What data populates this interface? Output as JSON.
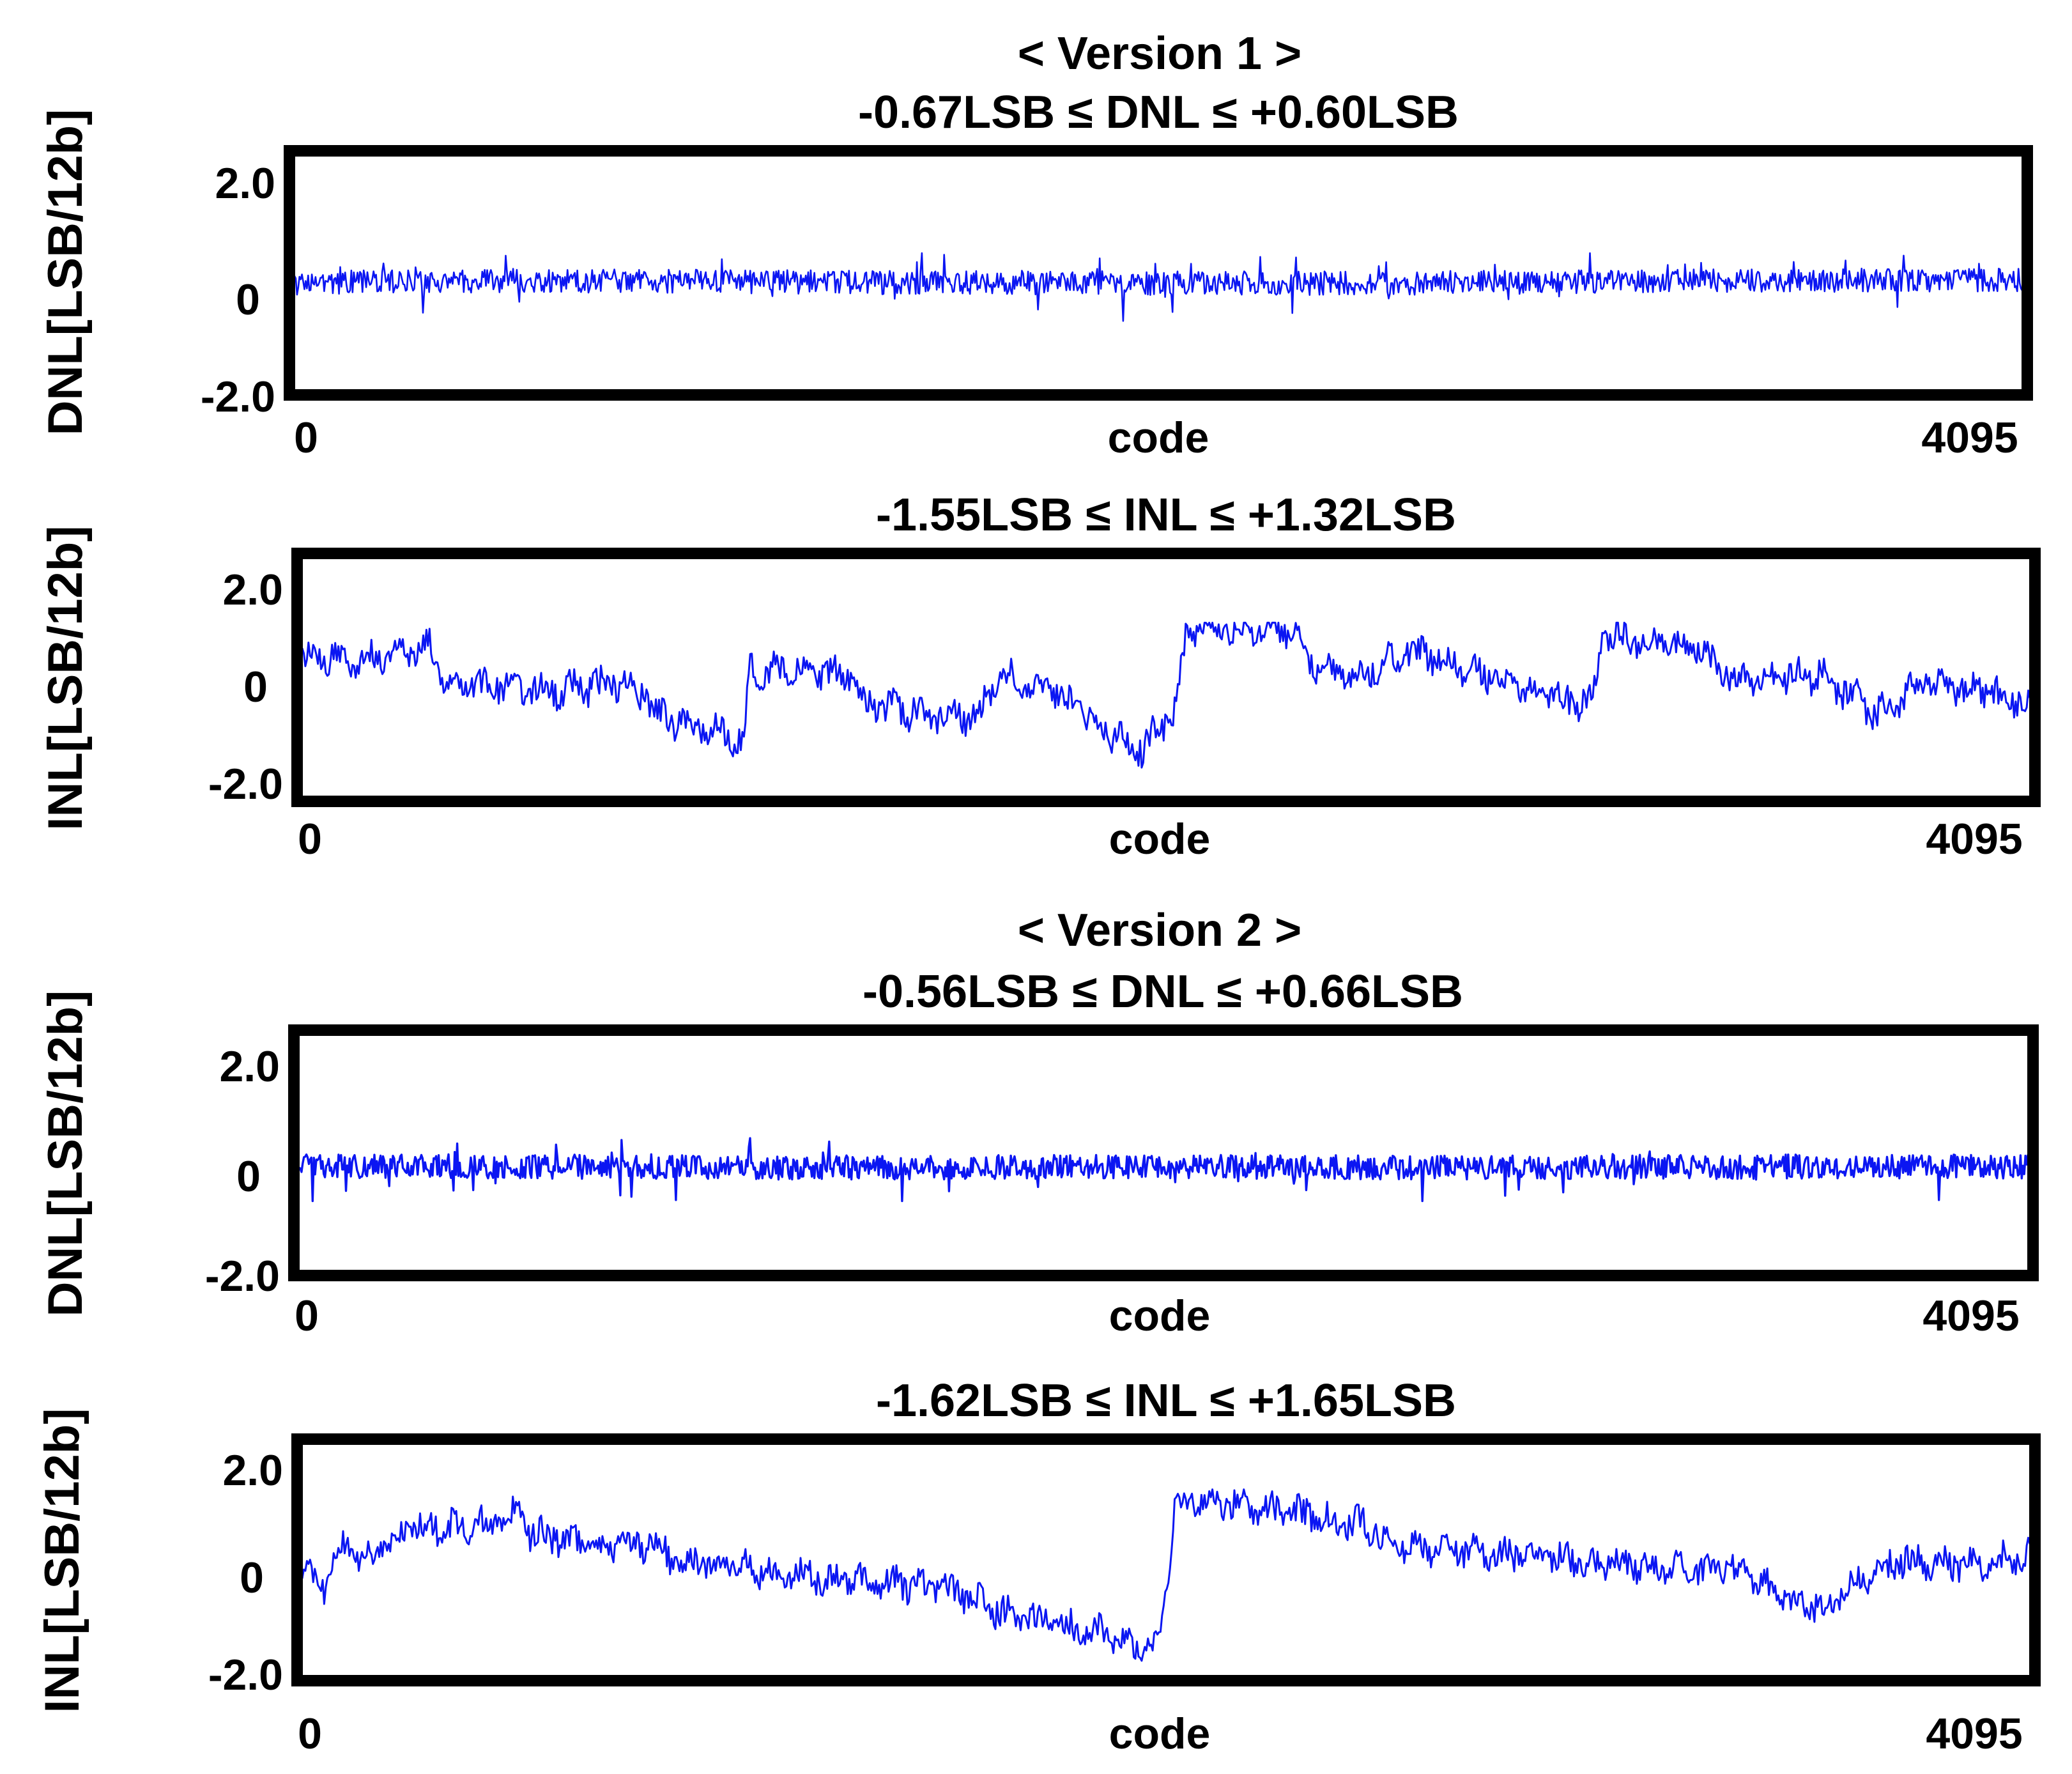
{
  "colors": {
    "line": "#0b16f2",
    "frame": "#000000",
    "background": "#ffffff"
  },
  "versions": [
    {
      "title": "< Version 1 >"
    },
    {
      "title": "< Version 2 >"
    }
  ],
  "chart_data": [
    {
      "type": "line",
      "version": 1,
      "metric": "DNL",
      "title": "-0.67LSB ≤ DNL ≤ +0.60LSB",
      "ylabel": "DNL[LSB/12b]",
      "xlabel": "code",
      "xlim": [
        0,
        4095
      ],
      "ylim": [
        -2.0,
        2.0
      ],
      "xticklabels": [
        "0",
        "4095"
      ],
      "yticklabels": [
        "2.0",
        "0",
        "-2.0"
      ],
      "min": -0.67,
      "max": 0.6,
      "baseline": 0.05,
      "grid": false,
      "legend": "none",
      "points": [
        [
          0,
          0.02
        ],
        [
          256,
          0.05
        ],
        [
          512,
          0.07
        ],
        [
          1024,
          0.05
        ],
        [
          1536,
          0.03
        ],
        [
          2048,
          0.02
        ],
        [
          2560,
          0.02
        ],
        [
          3072,
          0.05
        ],
        [
          3584,
          0.07
        ],
        [
          4095,
          0.08
        ]
      ]
    },
    {
      "type": "line",
      "version": 1,
      "metric": "INL",
      "title": "-1.55LSB ≤ INL ≤ +1.32LSB",
      "ylabel": "INL[LSB/12b]",
      "xlabel": "code",
      "xlim": [
        0,
        4095
      ],
      "ylim": [
        -2.0,
        2.0
      ],
      "xticklabels": [
        "0",
        "4095"
      ],
      "yticklabels": [
        "2.0",
        "0",
        "-2.0"
      ],
      "min": -1.55,
      "max": 1.32,
      "grid": false,
      "legend": "none",
      "points": [
        [
          0,
          0.6
        ],
        [
          120,
          0.6
        ],
        [
          250,
          0.75
        ],
        [
          300,
          0.9
        ],
        [
          330,
          0.3
        ],
        [
          420,
          0.1
        ],
        [
          580,
          0.0
        ],
        [
          780,
          0.15
        ],
        [
          860,
          -0.5
        ],
        [
          1050,
          -0.9
        ],
        [
          1060,
          0.4
        ],
        [
          1300,
          0.3
        ],
        [
          1330,
          -0.3
        ],
        [
          1600,
          -0.5
        ],
        [
          1650,
          0.3
        ],
        [
          1760,
          0.1
        ],
        [
          1980,
          -1.1
        ],
        [
          2060,
          -0.5
        ],
        [
          2100,
          1.2
        ],
        [
          2350,
          1.2
        ],
        [
          2400,
          0.4
        ],
        [
          2520,
          0.3
        ],
        [
          2630,
          0.8
        ],
        [
          2800,
          0.3
        ],
        [
          3000,
          -0.2
        ],
        [
          3060,
          -0.2
        ],
        [
          3080,
          1.1
        ],
        [
          3300,
          0.8
        ],
        [
          3400,
          0.2
        ],
        [
          3600,
          0.3
        ],
        [
          3730,
          -0.4
        ],
        [
          3850,
          0.2
        ],
        [
          4095,
          -0.2
        ]
      ]
    },
    {
      "type": "line",
      "version": 2,
      "metric": "DNL",
      "title": "-0.56LSB ≤ DNL ≤ +0.66LSB",
      "ylabel": "DNL[LSB/12b]",
      "xlabel": "code",
      "xlim": [
        0,
        4095
      ],
      "ylim": [
        -2.0,
        2.0
      ],
      "xticklabels": [
        "0",
        "4095"
      ],
      "yticklabels": [
        "2.0",
        "0",
        "-2.0"
      ],
      "min": -0.56,
      "max": 0.66,
      "baseline": 0.1,
      "grid": false,
      "legend": "none",
      "points": [
        [
          0,
          0.1
        ],
        [
          512,
          0.1
        ],
        [
          1024,
          0.08
        ],
        [
          1536,
          0.08
        ],
        [
          2048,
          0.1
        ],
        [
          2560,
          0.08
        ],
        [
          3072,
          0.08
        ],
        [
          3584,
          0.1
        ],
        [
          4095,
          0.1
        ]
      ]
    },
    {
      "type": "line",
      "version": 2,
      "metric": "INL",
      "title": "-1.62LSB ≤ INL ≤ +1.65LSB",
      "ylabel": "INL[LSB/12b]",
      "xlabel": "code",
      "xlim": [
        0,
        4095
      ],
      "ylim": [
        -2.0,
        2.0
      ],
      "xticklabels": [
        "0",
        "4095"
      ],
      "yticklabels": [
        "2.0",
        "0",
        "-2.0"
      ],
      "min": -1.62,
      "max": 1.65,
      "grid": false,
      "legend": "none",
      "points": [
        [
          0,
          0.0
        ],
        [
          50,
          -0.2
        ],
        [
          100,
          0.6
        ],
        [
          150,
          0.3
        ],
        [
          250,
          0.9
        ],
        [
          450,
          1.0
        ],
        [
          510,
          1.2
        ],
        [
          540,
          0.8
        ],
        [
          700,
          0.6
        ],
        [
          850,
          0.6
        ],
        [
          880,
          0.3
        ],
        [
          1000,
          0.2
        ],
        [
          1300,
          -0.1
        ],
        [
          1500,
          -0.2
        ],
        [
          1700,
          -0.8
        ],
        [
          1900,
          -1.1
        ],
        [
          2030,
          -1.4
        ],
        [
          2050,
          0.0
        ],
        [
          2070,
          1.4
        ],
        [
          2200,
          1.4
        ],
        [
          2500,
          1.0
        ],
        [
          2600,
          0.6
        ],
        [
          3000,
          0.3
        ],
        [
          3200,
          0.2
        ],
        [
          3400,
          0.1
        ],
        [
          3550,
          -0.5
        ],
        [
          3620,
          -0.6
        ],
        [
          3700,
          0.0
        ],
        [
          3800,
          0.3
        ],
        [
          3950,
          0.2
        ],
        [
          4095,
          0.4
        ]
      ]
    }
  ]
}
